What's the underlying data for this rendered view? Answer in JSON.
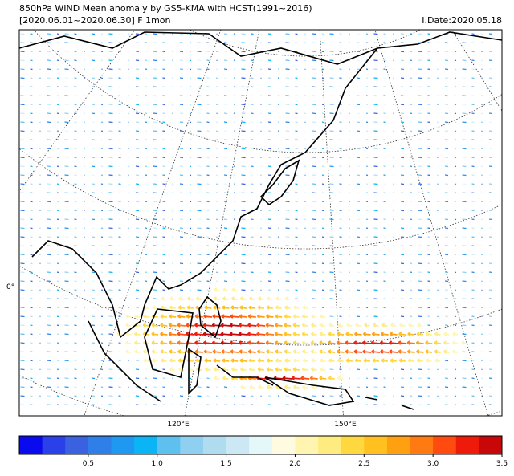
{
  "header": {
    "title": "850hPa WIND Mean anomaly by GS5-KMA with HCST(1991~2016)",
    "period": "[2020.06.01~2020.06.30] F 1mon",
    "init_date": "I.Date:2020.05.18"
  },
  "map": {
    "lat_labels": [
      "0°"
    ],
    "lon_labels": [
      "120°E",
      "150°E"
    ]
  },
  "colorbar": {
    "lim": [
      0,
      3.5
    ],
    "ticks": [
      0.5,
      {
        "value": 1,
        "label": "1.0"
      },
      1.5,
      {
        "value": 2,
        "label": "2.0"
      },
      2.5,
      {
        "value": 3,
        "label": "3.0"
      },
      3.5
    ],
    "colors": [
      "#0a0aef",
      "#2a40e8",
      "#3a62e0",
      "#2f7fe8",
      "#1e98f0",
      "#0ab4f5",
      "#5ec0ef",
      "#8fd0f0",
      "#b0dcf0",
      "#cce8f4",
      "#e4f8fa",
      "#fffbe0",
      "#fff4b0",
      "#ffec80",
      "#ffd840",
      "#ffc020",
      "#ffa010",
      "#ff7a10",
      "#ff4a10",
      "#ee1a0a",
      "#c80808"
    ]
  }
}
